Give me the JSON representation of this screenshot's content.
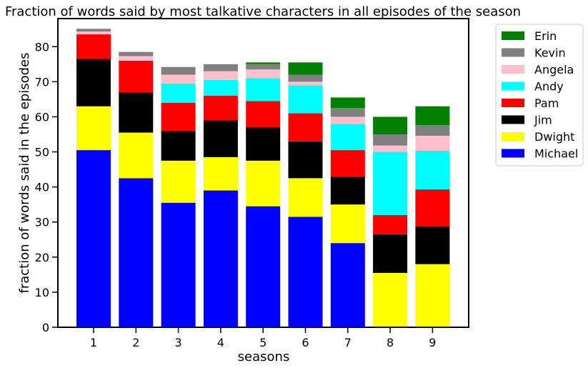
{
  "chart_data": {
    "type": "bar",
    "stacked": true,
    "title": "Fraction of words said by most talkative characters in all episodes of the season",
    "xlabel": "seasons",
    "ylabel": "fraction of words said in the episodes",
    "categories": [
      "1",
      "2",
      "3",
      "4",
      "5",
      "6",
      "7",
      "8",
      "9"
    ],
    "ylim": [
      0,
      88
    ],
    "yticks": [
      0,
      10,
      20,
      30,
      40,
      50,
      60,
      70,
      80
    ],
    "grid": false,
    "legend_position": "outside-right",
    "series": [
      {
        "name": "Michael",
        "color": "#0000ff",
        "values": [
          50.5,
          42.5,
          35.5,
          39.0,
          34.5,
          31.5,
          24.0,
          0,
          0
        ]
      },
      {
        "name": "Dwight",
        "color": "#ffff00",
        "values": [
          12.5,
          13.0,
          12.0,
          9.5,
          13.0,
          11.0,
          11.0,
          15.5,
          18.0
        ]
      },
      {
        "name": "Jim",
        "color": "#000000",
        "values": [
          13.5,
          11.5,
          8.5,
          10.5,
          9.5,
          10.5,
          8.0,
          11.0,
          10.8
        ]
      },
      {
        "name": "Pam",
        "color": "#ff0000",
        "values": [
          7.0,
          9.0,
          8.0,
          7.0,
          7.5,
          8.0,
          7.5,
          5.5,
          10.5
        ]
      },
      {
        "name": "Andy",
        "color": "#00ffff",
        "values": [
          0,
          0,
          5.5,
          4.5,
          6.5,
          8.0,
          7.5,
          18.0,
          11.0
        ]
      },
      {
        "name": "Angela",
        "color": "#ffc0cb",
        "values": [
          0.8,
          1.3,
          2.5,
          2.5,
          2.5,
          1.0,
          2.0,
          1.8,
          4.3
        ]
      },
      {
        "name": "Kevin",
        "color": "#808080",
        "values": [
          0.8,
          1.2,
          2.2,
          2.0,
          1.5,
          2.0,
          2.5,
          3.2,
          3.0
        ]
      },
      {
        "name": "Erin",
        "color": "#008000",
        "values": [
          0,
          0,
          0,
          0,
          0.5,
          3.5,
          3.0,
          5.0,
          5.4
        ]
      }
    ]
  }
}
